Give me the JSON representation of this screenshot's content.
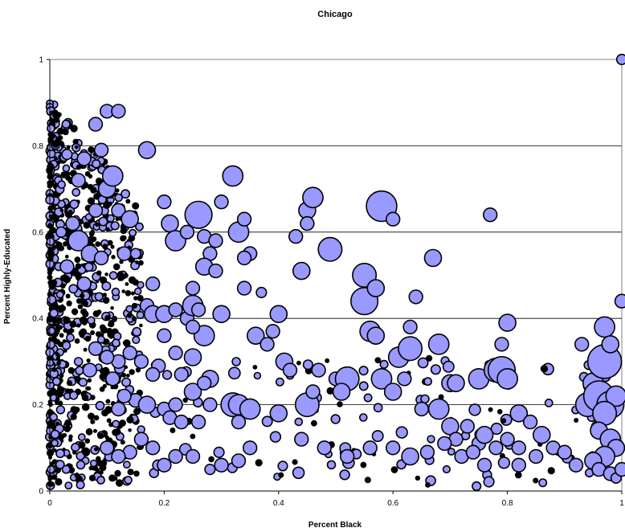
{
  "chart_data": {
    "type": "scatter",
    "variant": "bubble",
    "title": "Chicago",
    "xlabel": "Percent Black",
    "ylabel": "Percent Highly-Educated",
    "xlim": [
      0,
      1
    ],
    "ylim": [
      0,
      1
    ],
    "xticks": [
      "0",
      "0.2",
      "0.4",
      "0.6",
      "0.8",
      "1"
    ],
    "yticks": [
      "0",
      "0.2",
      "0.4",
      "0.6",
      "0.8",
      "1"
    ],
    "horizontal_gridlines": true,
    "vertical_gridlines": false,
    "bubble_fill": "#9999ff",
    "bubble_stroke": "#000000",
    "note": "bubble size encodes a third variable (unlabeled); the dense cluster of small points near x=0 is summarized by the randomized cloud",
    "points": [
      [
        0.05,
        0.58,
        3
      ],
      [
        0.07,
        0.55,
        2.5
      ],
      [
        0.03,
        0.52,
        2
      ],
      [
        0.09,
        0.54,
        2
      ],
      [
        0.06,
        0.48,
        2
      ],
      [
        0.04,
        0.62,
        2
      ],
      [
        0.02,
        0.6,
        1.5
      ],
      [
        0.08,
        0.65,
        2
      ],
      [
        0.1,
        0.7,
        2.5
      ],
      [
        0.12,
        0.65,
        2
      ],
      [
        0.11,
        0.73,
        3
      ],
      [
        0.09,
        0.79,
        2
      ],
      [
        0.08,
        0.85,
        2
      ],
      [
        0.1,
        0.88,
        2
      ],
      [
        0.12,
        0.88,
        2
      ],
      [
        0.06,
        0.77,
        2
      ],
      [
        0.05,
        0.72,
        2
      ],
      [
        0.03,
        0.78,
        1.5
      ],
      [
        0.14,
        0.63,
        2.5
      ],
      [
        0.13,
        0.55,
        2
      ],
      [
        0.15,
        0.55,
        1.5
      ],
      [
        0.17,
        0.79,
        2.5
      ],
      [
        0.2,
        0.67,
        2
      ],
      [
        0.21,
        0.62,
        2.5
      ],
      [
        0.22,
        0.58,
        3
      ],
      [
        0.24,
        0.6,
        2
      ],
      [
        0.26,
        0.64,
        4
      ],
      [
        0.27,
        0.59,
        2
      ],
      [
        0.28,
        0.55,
        2
      ],
      [
        0.29,
        0.58,
        2
      ],
      [
        0.3,
        0.67,
        2
      ],
      [
        0.32,
        0.73,
        3
      ],
      [
        0.33,
        0.6,
        3
      ],
      [
        0.34,
        0.63,
        2
      ],
      [
        0.35,
        0.55,
        2
      ],
      [
        0.34,
        0.54,
        2
      ],
      [
        0.27,
        0.52,
        2.5
      ],
      [
        0.29,
        0.51,
        2
      ],
      [
        0.25,
        0.47,
        2
      ],
      [
        0.18,
        0.48,
        2
      ],
      [
        0.17,
        0.43,
        2
      ],
      [
        0.18,
        0.41,
        2.5
      ],
      [
        0.2,
        0.41,
        2.5
      ],
      [
        0.22,
        0.42,
        2
      ],
      [
        0.24,
        0.4,
        2
      ],
      [
        0.25,
        0.43,
        3
      ],
      [
        0.26,
        0.42,
        2
      ],
      [
        0.27,
        0.36,
        3
      ],
      [
        0.25,
        0.38,
        2
      ],
      [
        0.22,
        0.32,
        2
      ],
      [
        0.2,
        0.36,
        2
      ],
      [
        0.19,
        0.29,
        2
      ],
      [
        0.18,
        0.27,
        2
      ],
      [
        0.16,
        0.3,
        2
      ],
      [
        0.14,
        0.32,
        2
      ],
      [
        0.12,
        0.3,
        2
      ],
      [
        0.11,
        0.26,
        2
      ],
      [
        0.1,
        0.31,
        2
      ],
      [
        0.08,
        0.33,
        2
      ],
      [
        0.07,
        0.28,
        2
      ],
      [
        0.15,
        0.21,
        2
      ],
      [
        0.13,
        0.22,
        2
      ],
      [
        0.12,
        0.19,
        2
      ],
      [
        0.17,
        0.2,
        2.5
      ],
      [
        0.2,
        0.19,
        2
      ],
      [
        0.22,
        0.2,
        2
      ],
      [
        0.25,
        0.23,
        2.5
      ],
      [
        0.28,
        0.26,
        2.5
      ],
      [
        0.27,
        0.25,
        2
      ],
      [
        0.25,
        0.31,
        2.5
      ],
      [
        0.23,
        0.27,
        2
      ],
      [
        0.21,
        0.17,
        2
      ],
      [
        0.23,
        0.16,
        2
      ],
      [
        0.26,
        0.16,
        2
      ],
      [
        0.28,
        0.2,
        2
      ],
      [
        0.32,
        0.2,
        3.5
      ],
      [
        0.33,
        0.2,
        3
      ],
      [
        0.35,
        0.19,
        3
      ],
      [
        0.33,
        0.16,
        2
      ],
      [
        0.35,
        0.1,
        2
      ],
      [
        0.33,
        0.07,
        2
      ],
      [
        0.3,
        0.06,
        2
      ],
      [
        0.28,
        0.05,
        1.5
      ],
      [
        0.25,
        0.08,
        2
      ],
      [
        0.22,
        0.08,
        2
      ],
      [
        0.2,
        0.06,
        2
      ],
      [
        0.18,
        0.1,
        2
      ],
      [
        0.16,
        0.12,
        2
      ],
      [
        0.14,
        0.09,
        2
      ],
      [
        0.12,
        0.08,
        2
      ],
      [
        0.1,
        0.1,
        2
      ],
      [
        0.3,
        0.41,
        2.5
      ],
      [
        0.36,
        0.36,
        2.5
      ],
      [
        0.38,
        0.34,
        2
      ],
      [
        0.39,
        0.37,
        2
      ],
      [
        0.4,
        0.41,
        2.5
      ],
      [
        0.41,
        0.3,
        2.5
      ],
      [
        0.42,
        0.28,
        2
      ],
      [
        0.43,
        0.59,
        2
      ],
      [
        0.44,
        0.51,
        2.5
      ],
      [
        0.45,
        0.65,
        2.5
      ],
      [
        0.46,
        0.68,
        3
      ],
      [
        0.45,
        0.62,
        2
      ],
      [
        0.49,
        0.56,
        3.5
      ],
      [
        0.45,
        0.2,
        3.5
      ],
      [
        0.46,
        0.23,
        2
      ],
      [
        0.47,
        0.28,
        2
      ],
      [
        0.5,
        0.26,
        2
      ],
      [
        0.52,
        0.26,
        3.5
      ],
      [
        0.51,
        0.23,
        2.5
      ],
      [
        0.55,
        0.5,
        3.5
      ],
      [
        0.55,
        0.44,
        4
      ],
      [
        0.57,
        0.47,
        2.5
      ],
      [
        0.58,
        0.66,
        4.5
      ],
      [
        0.6,
        0.63,
        2
      ],
      [
        0.56,
        0.37,
        3
      ],
      [
        0.57,
        0.36,
        2.5
      ],
      [
        0.58,
        0.26,
        3
      ],
      [
        0.6,
        0.23,
        2.5
      ],
      [
        0.61,
        0.31,
        3
      ],
      [
        0.63,
        0.33,
        3.5
      ],
      [
        0.63,
        0.38,
        2
      ],
      [
        0.64,
        0.45,
        2
      ],
      [
        0.62,
        0.26,
        2
      ],
      [
        0.65,
        0.19,
        2
      ],
      [
        0.68,
        0.19,
        3
      ],
      [
        0.67,
        0.54,
        2.5
      ],
      [
        0.68,
        0.34,
        3
      ],
      [
        0.7,
        0.25,
        2.5
      ],
      [
        0.71,
        0.25,
        2.5
      ],
      [
        0.7,
        0.15,
        2.5
      ],
      [
        0.71,
        0.12,
        2
      ],
      [
        0.73,
        0.15,
        2
      ],
      [
        0.75,
        0.11,
        2
      ],
      [
        0.76,
        0.13,
        2.5
      ],
      [
        0.75,
        0.26,
        3
      ],
      [
        0.77,
        0.64,
        2
      ],
      [
        0.78,
        0.28,
        3.5
      ],
      [
        0.79,
        0.28,
        4
      ],
      [
        0.8,
        0.26,
        3
      ],
      [
        0.8,
        0.39,
        2.5
      ],
      [
        0.79,
        0.34,
        2
      ],
      [
        0.8,
        0.12,
        2
      ],
      [
        0.82,
        0.18,
        2.5
      ],
      [
        0.82,
        0.1,
        2
      ],
      [
        0.84,
        0.16,
        2
      ],
      [
        0.86,
        0.13,
        2.5
      ],
      [
        0.88,
        0.1,
        2
      ],
      [
        0.9,
        0.09,
        2
      ],
      [
        0.92,
        0.06,
        2
      ],
      [
        0.93,
        0.34,
        2
      ],
      [
        0.94,
        0.2,
        3.5
      ],
      [
        0.95,
        0.25,
        3
      ],
      [
        0.96,
        0.22,
        4.5
      ],
      [
        0.97,
        0.3,
        5
      ],
      [
        0.97,
        0.38,
        3
      ],
      [
        0.98,
        0.34,
        2.5
      ],
      [
        0.98,
        0.2,
        4
      ],
      [
        0.99,
        0.22,
        3
      ],
      [
        0.97,
        0.18,
        3.5
      ],
      [
        0.96,
        0.14,
        2.5
      ],
      [
        0.98,
        0.12,
        3
      ],
      [
        0.99,
        0.1,
        2.5
      ],
      [
        0.97,
        0.08,
        3
      ],
      [
        0.95,
        0.07,
        2.5
      ],
      [
        0.96,
        0.05,
        2
      ],
      [
        0.98,
        0.04,
        2
      ],
      [
        0.99,
        0.03,
        1.5
      ],
      [
        1,
        0.05,
        2
      ],
      [
        1,
        0.44,
        2
      ],
      [
        1,
        1,
        1.5
      ],
      [
        0.34,
        0.47,
        2
      ],
      [
        0.37,
        0.46,
        1.5
      ],
      [
        0.4,
        0.18,
        2.5
      ],
      [
        0.44,
        0.12,
        2
      ],
      [
        0.48,
        0.1,
        2
      ],
      [
        0.52,
        0.08,
        2
      ],
      [
        0.56,
        0.1,
        2
      ],
      [
        0.6,
        0.1,
        2
      ],
      [
        0.63,
        0.08,
        2.5
      ],
      [
        0.66,
        0.09,
        2
      ],
      [
        0.69,
        0.11,
        2
      ],
      [
        0.72,
        0.08,
        2
      ],
      [
        0.74,
        0.09,
        2
      ],
      [
        0.76,
        0.06,
        2
      ],
      [
        0.78,
        0.1,
        2
      ],
      [
        0.82,
        0.06,
        2
      ],
      [
        0.85,
        0.08,
        2
      ]
    ]
  }
}
